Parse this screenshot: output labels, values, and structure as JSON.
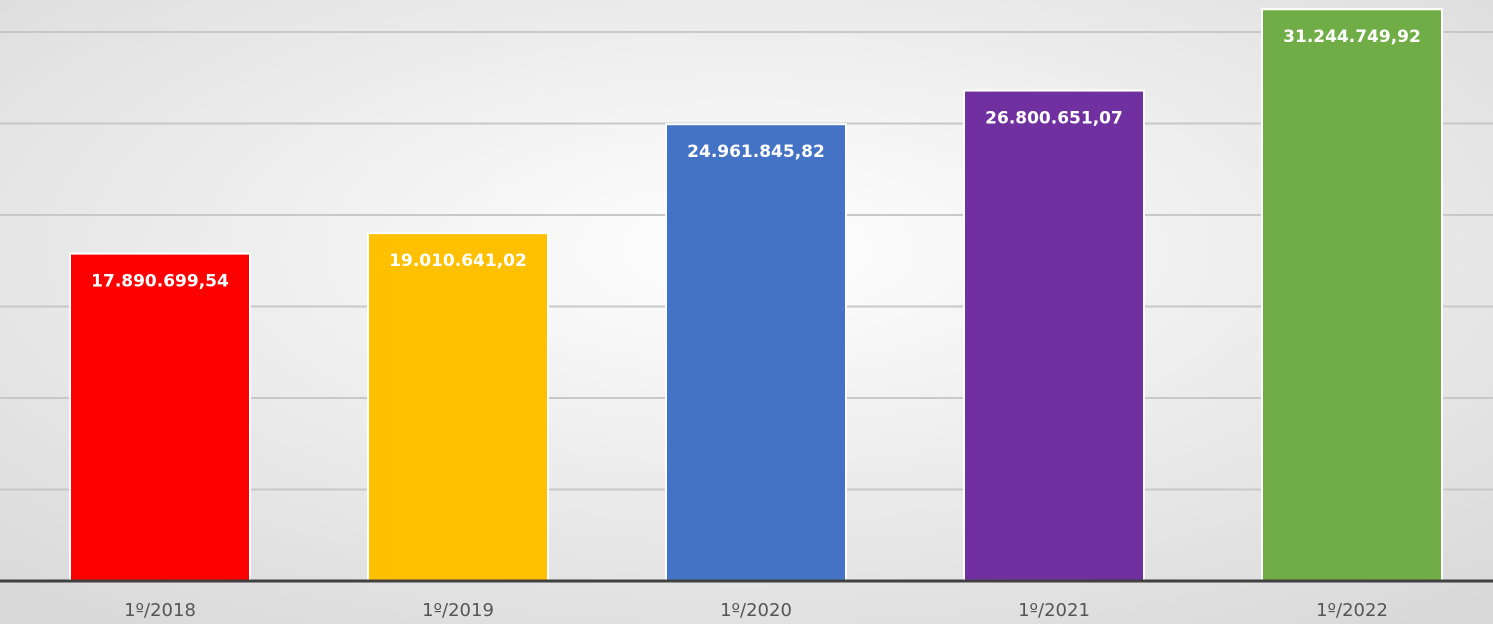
{
  "chart_data": {
    "type": "bar",
    "categories": [
      "1º/2018",
      "1º/2019",
      "1º/2020",
      "1º/2021",
      "1º/2022"
    ],
    "values": [
      17890699.54,
      19010641.02,
      24961845.82,
      26800651.07,
      31244749.92
    ],
    "value_labels": [
      "17.890.699,54",
      "19.010.641,02",
      "24.961.845,82",
      "26.800.651,07",
      "31.244.749,92"
    ],
    "colors": [
      "#ff0000",
      "#ffc000",
      "#4472c4",
      "#7030a0",
      "#70ad47"
    ],
    "ylim": [
      0,
      31750000
    ],
    "yticks": [
      0,
      5000000,
      10000000,
      15000000,
      20000000,
      25000000,
      30000000
    ],
    "grid": true
  }
}
